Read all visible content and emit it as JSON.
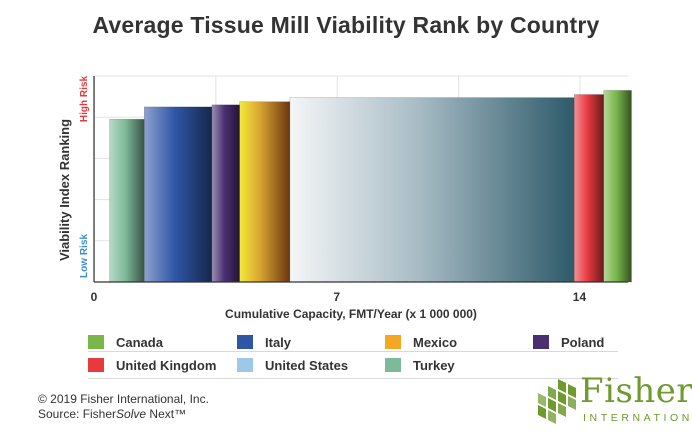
{
  "chart_data": {
    "type": "bar",
    "title": "Average Tissue Mill Viability Rank by Country",
    "xlabel": "Cumulative Capacity, FMT/Year (x 1 000 000)",
    "ylabel": "Viability Index Ranking",
    "y_high_label": "High Risk",
    "y_low_label": "Low Risk",
    "xticks": [
      "0",
      "7",
      "14"
    ],
    "xlim": [
      0,
      15.4
    ],
    "ylim": [
      0,
      100
    ],
    "grid": true,
    "legend_position": "bottom",
    "series": [
      {
        "name": "Turkey",
        "x_start": 0.45,
        "x_end": 1.45,
        "value": 79,
        "color": "#7dba9a"
      },
      {
        "name": "Italy",
        "x_start": 1.45,
        "x_end": 3.4,
        "value": 85,
        "color": "#2f56a6"
      },
      {
        "name": "Poland",
        "x_start": 3.4,
        "x_end": 4.2,
        "value": 86,
        "color": "#4b2f73"
      },
      {
        "name": "Mexico",
        "x_start": 4.2,
        "x_end": 5.65,
        "value": 87.5,
        "color": "#f5a623"
      },
      {
        "name": "United States",
        "x_start": 5.65,
        "x_end": 13.85,
        "value": 89.5,
        "color": "#9cc9e8"
      },
      {
        "name": "United Kingdom",
        "x_start": 13.85,
        "x_end": 14.7,
        "value": 91,
        "color": "#e8393f"
      },
      {
        "name": "Canada",
        "x_start": 14.7,
        "x_end": 15.5,
        "value": 93,
        "color": "#78b74a"
      }
    ]
  },
  "legend": {
    "items": [
      {
        "label": "Canada",
        "color": "#78b74a"
      },
      {
        "label": "Italy",
        "color": "#2f56a6"
      },
      {
        "label": "Mexico",
        "color": "#f5a623"
      },
      {
        "label": "Poland",
        "color": "#4b2f73"
      },
      {
        "label": "United Kingdom",
        "color": "#e8393f"
      },
      {
        "label": "United States",
        "color": "#9cc9e8"
      },
      {
        "label": "Turkey",
        "color": "#7dba9a"
      }
    ]
  },
  "footer": {
    "copyright": "© 2019 Fisher International, Inc.",
    "source_prefix": "Source: Fisher",
    "source_italic": "Solve",
    "source_suffix": " Next™"
  },
  "logo": {
    "word": "Fisher",
    "sub": "INTERNATIONAL"
  },
  "colors": {
    "high_risk": "#e23b3b",
    "low_risk": "#3b8fd1",
    "logo_green": "#6e9a2e"
  }
}
